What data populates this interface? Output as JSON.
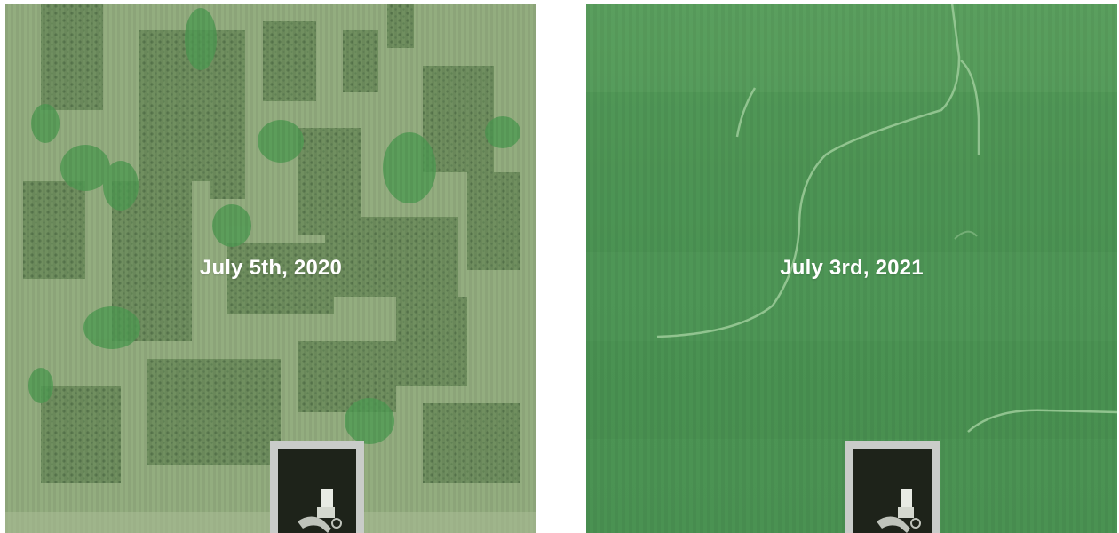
{
  "panels": [
    {
      "caption": "July 5th, 2020",
      "imagery": "aerial field, patchy uneven crop",
      "base_color": "#8fa97a"
    },
    {
      "caption": "July 3rd, 2021",
      "imagery": "aerial field, uniform green crop",
      "base_color": "#4f9a5b"
    }
  ],
  "inset_icon": "grain-bin-site-icon"
}
